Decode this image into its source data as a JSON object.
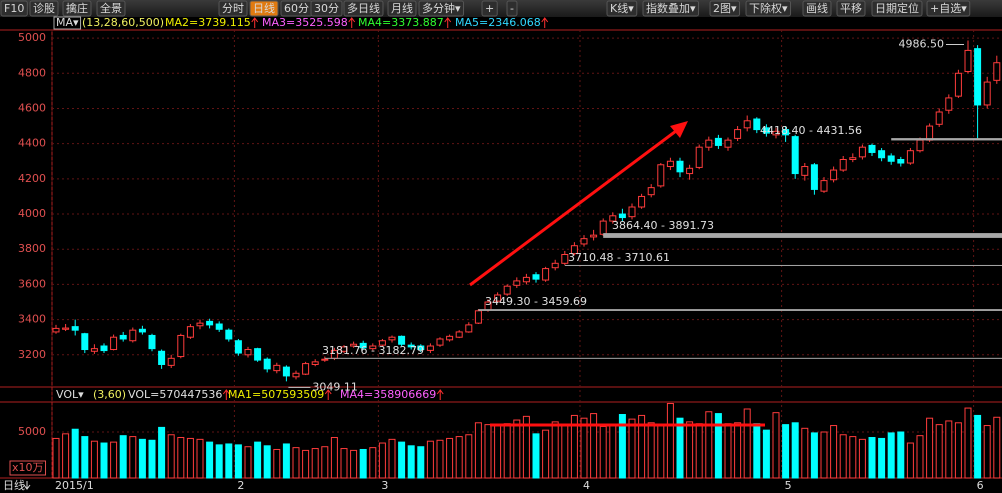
{
  "toolbar": {
    "left": [
      "F10",
      "诊股",
      "擒庄",
      "全景"
    ],
    "periods": [
      "分时",
      "日线",
      "60分",
      "30分",
      "多日线",
      "月线",
      "多分钟▾",
      "+",
      "-"
    ],
    "active_index": 1,
    "right": [
      "K线▾",
      "指数叠加▾",
      "2图▾",
      "下除权▾",
      "画线",
      "平移",
      "日期定位",
      "+自选▾"
    ]
  },
  "chart_data": [
    {
      "type": "candlestick",
      "legend": {
        "button": "MA▾",
        "params": "(13,28,60,500)",
        "items": [
          {
            "text": "MA2=3739.115",
            "color": "#f0f000"
          },
          {
            "text": "MA3=3525.598",
            "color": "#ff60ff"
          },
          {
            "text": "MA4=3373.887",
            "color": "#30ff30"
          },
          {
            "text": "MA5=2346.068",
            "color": "#30d8ff"
          }
        ]
      },
      "up_color": "#ff3c3c",
      "down_color": "#00ffff",
      "open": [
        3330,
        3345,
        3360,
        3320,
        3220,
        3250,
        3230,
        3310,
        3280,
        3345,
        3310,
        3220,
        3140,
        3190,
        3300,
        3365,
        3390,
        3375,
        3340,
        3280,
        3200,
        3235,
        3175,
        3110,
        3130,
        3075,
        3090,
        3145,
        3170,
        3180,
        3220,
        3250,
        3265,
        3235,
        3255,
        3285,
        3305,
        3255,
        3250,
        3225,
        3255,
        3285,
        3300,
        3330,
        3380,
        3455,
        3505,
        3545,
        3595,
        3615,
        3655,
        3625,
        3695,
        3720,
        3775,
        3830,
        3870,
        3885,
        3960,
        4000,
        3985,
        4040,
        4110,
        4160,
        4270,
        4300,
        4230,
        4265,
        4380,
        4430,
        4380,
        4430,
        4490,
        4540,
        4490,
        4450,
        4480,
        4440,
        4220,
        4280,
        4130,
        4195,
        4250,
        4310,
        4325,
        4390,
        4360,
        4330,
        4310,
        4290,
        4360,
        4420,
        4510,
        4590,
        4670,
        4810,
        4940,
        4620,
        4760
      ],
      "high": [
        3370,
        3375,
        3400,
        3325,
        3260,
        3265,
        3315,
        3330,
        3355,
        3365,
        3320,
        3230,
        3200,
        3320,
        3375,
        3400,
        3405,
        3390,
        3350,
        3290,
        3245,
        3240,
        3185,
        3155,
        3140,
        3110,
        3160,
        3175,
        3190,
        3240,
        3255,
        3275,
        3280,
        3265,
        3290,
        3310,
        3310,
        3270,
        3260,
        3265,
        3300,
        3315,
        3340,
        3385,
        3460,
        3515,
        3555,
        3600,
        3640,
        3660,
        3670,
        3700,
        3740,
        3790,
        3840,
        3880,
        3910,
        3975,
        4010,
        4030,
        4060,
        4115,
        4170,
        4290,
        4320,
        4320,
        4280,
        4395,
        4440,
        4450,
        4435,
        4500,
        4560,
        4550,
        4510,
        4490,
        4500,
        4450,
        4290,
        4290,
        4210,
        4270,
        4330,
        4345,
        4395,
        4400,
        4375,
        4345,
        4325,
        4375,
        4435,
        4515,
        4600,
        4680,
        4820,
        4986.5,
        4960,
        4780,
        4900
      ],
      "low": [
        3320,
        3335,
        3310,
        3210,
        3205,
        3210,
        3225,
        3275,
        3270,
        3315,
        3220,
        3120,
        3125,
        3180,
        3290,
        3345,
        3350,
        3330,
        3275,
        3195,
        3185,
        3160,
        3100,
        3095,
        3049.11,
        3060,
        3085,
        3135,
        3160,
        3170,
        3210,
        3240,
        3230,
        3225,
        3245,
        3270,
        3250,
        3230,
        3215,
        3210,
        3245,
        3275,
        3295,
        3325,
        3375,
        3445,
        3495,
        3535,
        3580,
        3600,
        3610,
        3615,
        3680,
        3710,
        3765,
        3815,
        3850,
        3875,
        3945,
        3960,
        3970,
        4030,
        4095,
        4150,
        4250,
        4210,
        4195,
        4255,
        4360,
        4370,
        4360,
        4415,
        4470,
        4460,
        4440,
        4430,
        4410,
        4200,
        4190,
        4110,
        4120,
        4180,
        4240,
        4295,
        4310,
        4330,
        4300,
        4280,
        4270,
        4280,
        4350,
        4410,
        4495,
        4570,
        4660,
        4800,
        4430,
        4600,
        4740
      ],
      "close": [
        3350,
        3352,
        3340,
        3230,
        3235,
        3224,
        3300,
        3290,
        3340,
        3330,
        3235,
        3145,
        3180,
        3310,
        3360,
        3380,
        3370,
        3345,
        3290,
        3210,
        3230,
        3170,
        3120,
        3140,
        3080,
        3095,
        3150,
        3160,
        3175,
        3225,
        3245,
        3260,
        3240,
        3250,
        3280,
        3300,
        3260,
        3245,
        3230,
        3250,
        3290,
        3305,
        3330,
        3370,
        3450,
        3500,
        3540,
        3590,
        3620,
        3640,
        3630,
        3690,
        3720,
        3770,
        3820,
        3860,
        3880,
        3960,
        3990,
        3980,
        4040,
        4100,
        4150,
        4280,
        4300,
        4240,
        4260,
        4380,
        4420,
        4390,
        4420,
        4480,
        4530,
        4480,
        4460,
        4470,
        4450,
        4230,
        4270,
        4140,
        4190,
        4250,
        4310,
        4320,
        4380,
        4350,
        4320,
        4300,
        4290,
        4360,
        4420,
        4500,
        4580,
        4660,
        4800,
        4930,
        4620,
        4750,
        4860
      ],
      "ylim": [
        3017,
        5046
      ],
      "yticks": [
        3200,
        3400,
        3600,
        3800,
        4000,
        4200,
        4400,
        4600,
        4800,
        5000
      ],
      "grid": true,
      "annotations": [
        {
          "label": "3049.11",
          "value": 3049.11
        },
        {
          "label": "4986.50",
          "value": 4986.5
        }
      ],
      "gaps": [
        {
          "label": "3181.76 - 3182.79",
          "low": 3181.76,
          "high": 3182.79
        },
        {
          "label": "3449.30 - 3459.69",
          "low": 3449.3,
          "high": 3459.69
        },
        {
          "label": "3710.48 - 3710.61",
          "low": 3710.48,
          "high": 3710.61
        },
        {
          "label": "3864.40 - 3891.73",
          "low": 3864.4,
          "high": 3891.73
        },
        {
          "label": "4418.40 - 4431.56",
          "low": 4418.4,
          "high": 4431.56
        }
      ]
    },
    {
      "type": "bar",
      "legend": {
        "button": "VOL▾",
        "params": "(3,60)",
        "items": [
          {
            "text": "VOL=570447536",
            "color": "#e0e0e0"
          },
          {
            "text": "MA1=507593509",
            "color": "#f0f000"
          },
          {
            "text": "MA4=358906669",
            "color": "#ff60ff"
          }
        ]
      },
      "unit": "x10万",
      "categories": [
        "2015/1",
        null,
        null,
        null,
        null,
        null,
        null,
        null,
        null,
        null,
        null,
        null,
        null,
        null,
        null,
        null,
        null,
        null,
        null,
        "2",
        null,
        null,
        null,
        null,
        null,
        null,
        null,
        null,
        null,
        null,
        null,
        null,
        null,
        null,
        "3",
        null,
        null,
        null,
        null,
        null,
        null,
        null,
        null,
        null,
        null,
        null,
        null,
        null,
        null,
        null,
        null,
        null,
        null,
        null,
        null,
        "4",
        null,
        null,
        null,
        null,
        null,
        null,
        null,
        null,
        null,
        null,
        null,
        null,
        null,
        null,
        null,
        null,
        null,
        null,
        null,
        null,
        "5",
        null,
        null,
        null,
        null,
        null,
        null,
        null,
        null,
        null,
        null,
        null,
        null,
        null,
        null,
        null,
        null,
        null,
        null,
        null,
        "6",
        null,
        null
      ],
      "values": [
        4300,
        4800,
        5300,
        4500,
        4000,
        3800,
        3900,
        4600,
        4500,
        4200,
        4100,
        5500,
        4700,
        4400,
        4300,
        4200,
        3900,
        3600,
        3700,
        3600,
        3400,
        3900,
        3500,
        3100,
        3700,
        3300,
        3000,
        3200,
        3400,
        4400,
        3200,
        3000,
        3100,
        3300,
        3800,
        4200,
        3900,
        3500,
        3400,
        4000,
        4100,
        4300,
        4500,
        4700,
        6000,
        5800,
        5700,
        5900,
        6300,
        6700,
        4800,
        5200,
        6100,
        5800,
        6800,
        6500,
        7000,
        5600,
        5800,
        6900,
        6400,
        6800,
        6000,
        5800,
        8100,
        6500,
        6100,
        5900,
        7200,
        7000,
        5900,
        6000,
        7500,
        5900,
        5200,
        7100,
        5800,
        6000,
        5400,
        4900,
        5000,
        5700,
        4700,
        4500,
        4200,
        4400,
        4300,
        4900,
        5000,
        3800,
        4600,
        6500,
        5800,
        6200,
        6000,
        7600,
        6800,
        5700,
        6600
      ],
      "ylim": [
        0,
        8260
      ],
      "yticks": [
        5000
      ],
      "grid": true
    }
  ],
  "footer": {
    "period": "日线"
  }
}
